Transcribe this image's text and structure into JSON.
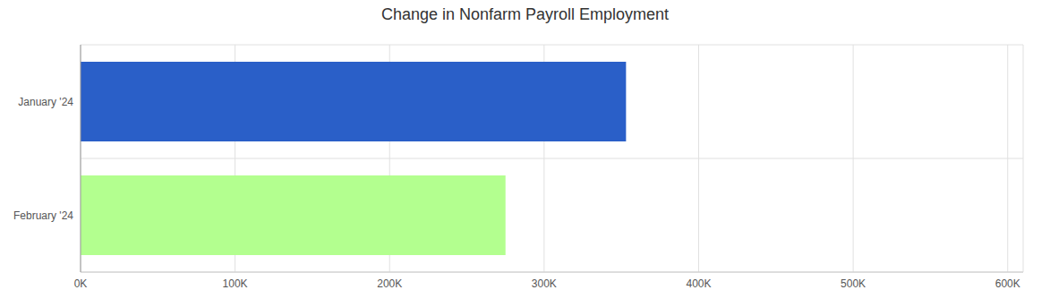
{
  "chart_data": {
    "type": "bar",
    "title": "Change in Nonfarm Payroll Employment",
    "orientation": "horizontal",
    "categories": [
      "January '24",
      "February '24"
    ],
    "values": [
      353000,
      275000
    ],
    "colors": [
      "#2a5fc8",
      "#b3ff8f"
    ],
    "xlim": [
      0,
      610000
    ],
    "xticks": [
      {
        "value": 0,
        "label": "0K"
      },
      {
        "value": 100000,
        "label": "100K"
      },
      {
        "value": 200000,
        "label": "200K"
      },
      {
        "value": 300000,
        "label": "300K"
      },
      {
        "value": 400000,
        "label": "400K"
      },
      {
        "value": 500000,
        "label": "500K"
      },
      {
        "value": 600000,
        "label": "600K"
      }
    ],
    "grid": true
  }
}
